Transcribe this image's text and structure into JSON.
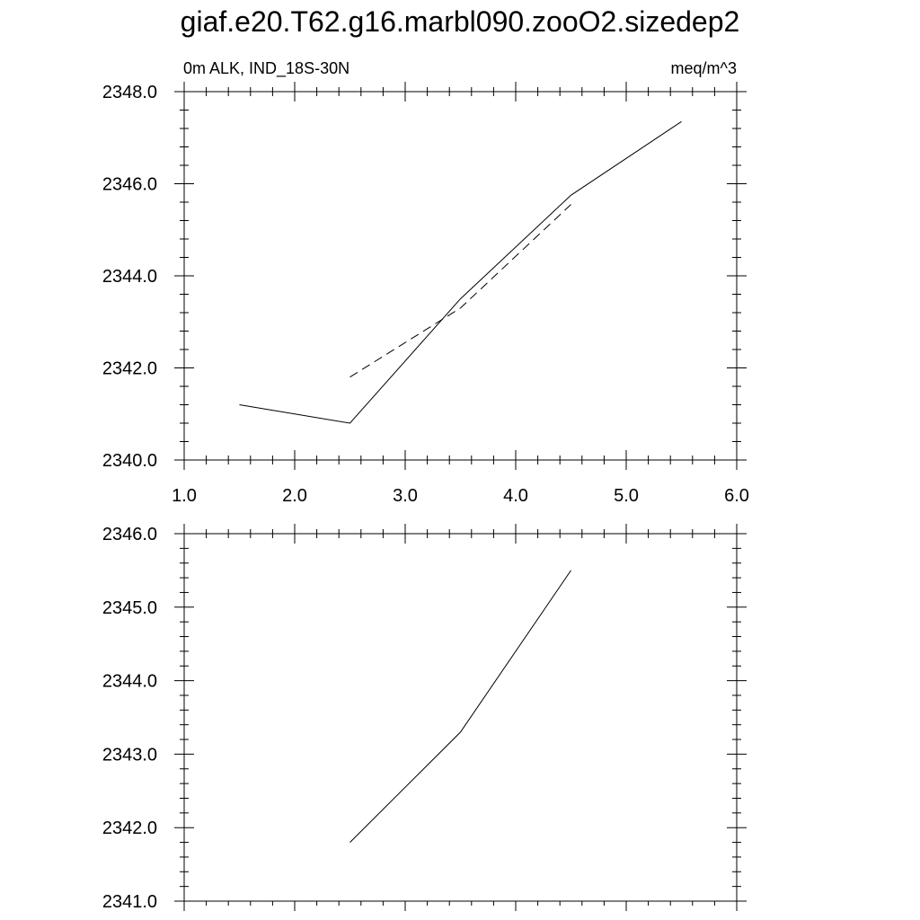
{
  "title": "giaf.e20.T62.g16.marbl090.zooO2.sizedep2",
  "chart_data": [
    {
      "type": "line",
      "left_label": "0m ALK, IND_18S-30N",
      "right_label": "meq/m^3",
      "xlim": [
        1.0,
        6.0
      ],
      "ylim": [
        2340.0,
        2348.0
      ],
      "x_ticks": [
        "1.0",
        "2.0",
        "3.0",
        "4.0",
        "5.0",
        "6.0"
      ],
      "y_ticks": [
        "2340.0",
        "2342.0",
        "2344.0",
        "2346.0",
        "2348.0"
      ],
      "series": [
        {
          "style": "solid",
          "color": "#000000",
          "x": [
            1.5,
            2.5,
            3.5,
            4.5,
            5.5
          ],
          "y": [
            2341.2,
            2340.8,
            2343.5,
            2345.75,
            2347.35
          ]
        },
        {
          "style": "dashed",
          "color": "#000000",
          "x": [
            2.5,
            3.5,
            4.5
          ],
          "y": [
            2341.8,
            2343.3,
            2345.55
          ]
        }
      ]
    },
    {
      "type": "line",
      "xlim": [
        1.0,
        6.0
      ],
      "ylim": [
        2341.0,
        2346.0
      ],
      "y_ticks": [
        "2341.0",
        "2342.0",
        "2343.0",
        "2344.0",
        "2345.0",
        "2346.0"
      ],
      "series": [
        {
          "style": "solid",
          "color": "#000000",
          "x": [
            2.5,
            3.5,
            4.5
          ],
          "y": [
            2341.8,
            2343.3,
            2345.5
          ]
        }
      ]
    }
  ]
}
